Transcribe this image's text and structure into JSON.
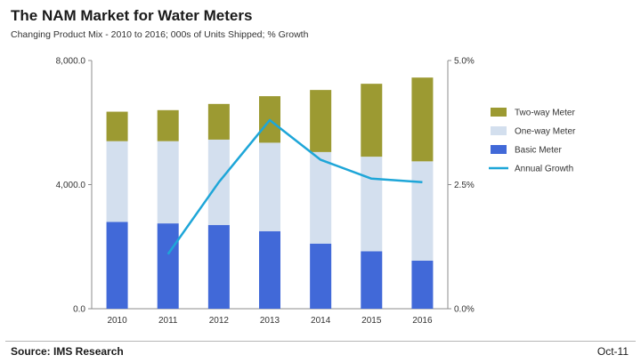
{
  "header": {
    "title": "The NAM Market for Water Meters",
    "subtitle": "Changing Product Mix - 2010 to 2016; 000s of Units Shipped; % Growth"
  },
  "footer": {
    "source": "Source: IMS Research",
    "date": "Oct-11"
  },
  "chart_data": {
    "type": "bar",
    "stacked": true,
    "title": "The NAM Market for Water Meters",
    "subtitle": "Changing Product Mix - 2010 to 2016; 000s of Units Shipped; % Growth",
    "categories": [
      "2010",
      "2011",
      "2012",
      "2013",
      "2014",
      "2015",
      "2016"
    ],
    "series": [
      {
        "name": "Basic Meter",
        "color": "#4169d8",
        "values": [
          2800,
          2750,
          2700,
          2500,
          2100,
          1850,
          1550
        ]
      },
      {
        "name": "One-way Meter",
        "color": "#d3dfee",
        "values": [
          2600,
          2650,
          2750,
          2850,
          2950,
          3050,
          3200
        ]
      },
      {
        "name": "Two-way Meter",
        "color": "#9c9a32",
        "values": [
          950,
          1000,
          1150,
          1500,
          2000,
          2350,
          2700
        ]
      }
    ],
    "line_series": {
      "name": "Annual Growth",
      "color": "#1ea6d8",
      "axis": "right",
      "categories": [
        "2011",
        "2012",
        "2013",
        "2014",
        "2015",
        "2016"
      ],
      "values": [
        1.1,
        2.55,
        3.8,
        3.0,
        2.62,
        2.55
      ]
    },
    "y_left": {
      "ylim": [
        0,
        8000
      ],
      "ticks": [
        "0.0",
        "4,000.0",
        "8,000.0"
      ],
      "tick_values": [
        0,
        4000,
        8000
      ]
    },
    "y_right": {
      "ylim": [
        0,
        5
      ],
      "ticks": [
        "0.0%",
        "2.5%",
        "5.0%"
      ],
      "tick_values": [
        0,
        2.5,
        5
      ]
    },
    "legend": {
      "placement": "right",
      "entries": [
        "Two-way Meter",
        "One-way Meter",
        "Basic Meter",
        "Annual Growth"
      ]
    }
  }
}
